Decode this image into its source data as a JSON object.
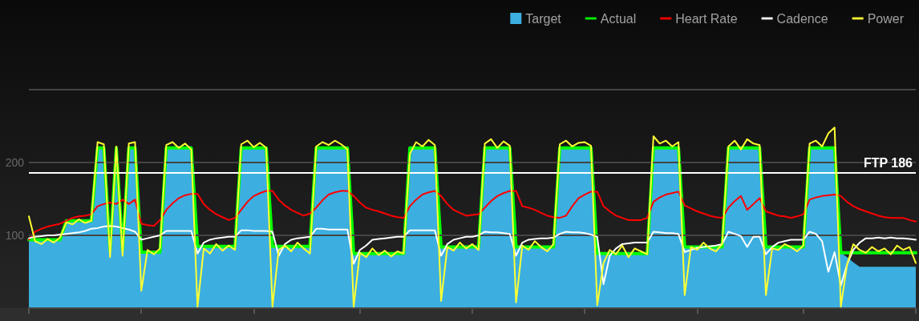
{
  "chart_data": {
    "type": "line",
    "categories": [
      null,
      null,
      null,
      null,
      null,
      null,
      null,
      null,
      null,
      null,
      null,
      null,
      null,
      null,
      null,
      null,
      null,
      null,
      null,
      null,
      null,
      null,
      null,
      null,
      null,
      null,
      null,
      null,
      null,
      null,
      null,
      null,
      null,
      null,
      null,
      null,
      null,
      null,
      null,
      null,
      null,
      null,
      null,
      null,
      null,
      null,
      null,
      null,
      null,
      null,
      null,
      null,
      null,
      null,
      null,
      null,
      null,
      null,
      null,
      null,
      null,
      null,
      null,
      null,
      null,
      null,
      null,
      null,
      null,
      null,
      null,
      null,
      null,
      null,
      null,
      null,
      null,
      null,
      null,
      null,
      null,
      null,
      null,
      null,
      null,
      null,
      null,
      null,
      null,
      null,
      null,
      null,
      null,
      null,
      null,
      null,
      null,
      null,
      null,
      null,
      null,
      null,
      null,
      null,
      null,
      null,
      null,
      null,
      null,
      null,
      null,
      null,
      null,
      null,
      null,
      null,
      null,
      null,
      null,
      null,
      null,
      null,
      null,
      null,
      null,
      null,
      null,
      null,
      null,
      null,
      null,
      null,
      null,
      null,
      null,
      null,
      null,
      null,
      null,
      null,
      null,
      null,
      null
    ],
    "series": [
      {
        "name": "Target",
        "type": "area",
        "color": "#3cafe0",
        "values": [
          94,
          94,
          94,
          94,
          94,
          94,
          120,
          120,
          120,
          120,
          120,
          220,
          220,
          80,
          220,
          80,
          220,
          220,
          77,
          77,
          77,
          77,
          220,
          220,
          220,
          220,
          220,
          85,
          85,
          85,
          85,
          85,
          85,
          85,
          220,
          220,
          220,
          220,
          220,
          85,
          85,
          85,
          85,
          85,
          85,
          85,
          220,
          220,
          220,
          220,
          220,
          220,
          75,
          75,
          75,
          75,
          75,
          75,
          75,
          75,
          75,
          220,
          220,
          220,
          220,
          220,
          84,
          84,
          84,
          84,
          84,
          84,
          84,
          220,
          220,
          220,
          220,
          220,
          84,
          84,
          84,
          84,
          84,
          84,
          84,
          220,
          220,
          220,
          220,
          220,
          220,
          75,
          75,
          75,
          75,
          75,
          75,
          75,
          75,
          75,
          220,
          220,
          220,
          220,
          220,
          84,
          84,
          84,
          84,
          84,
          84,
          84,
          220,
          220,
          220,
          220,
          220,
          220,
          84,
          84,
          84,
          84,
          84,
          84,
          84,
          220,
          220,
          220,
          220,
          220,
          76,
          70,
          63,
          57,
          57,
          57,
          57,
          57,
          57,
          57,
          57,
          57,
          57
        ]
      },
      {
        "name": "Actual",
        "color": "#00ff00",
        "values": [
          94,
          94,
          94,
          94,
          94,
          94,
          120,
          120,
          120,
          120,
          120,
          220,
          220,
          80,
          220,
          80,
          220,
          220,
          77,
          77,
          77,
          77,
          220,
          220,
          220,
          220,
          220,
          85,
          85,
          85,
          85,
          85,
          85,
          85,
          220,
          220,
          220,
          220,
          220,
          85,
          85,
          85,
          85,
          85,
          85,
          85,
          220,
          220,
          220,
          220,
          220,
          220,
          75,
          75,
          75,
          75,
          75,
          75,
          75,
          75,
          75,
          220,
          220,
          220,
          220,
          220,
          84,
          84,
          84,
          84,
          84,
          84,
          84,
          220,
          220,
          220,
          220,
          220,
          84,
          84,
          84,
          84,
          84,
          84,
          84,
          220,
          220,
          220,
          220,
          220,
          220,
          75,
          75,
          75,
          75,
          75,
          75,
          75,
          75,
          75,
          220,
          220,
          220,
          220,
          220,
          84,
          84,
          84,
          84,
          84,
          84,
          84,
          220,
          220,
          220,
          220,
          220,
          220,
          84,
          84,
          84,
          84,
          84,
          84,
          84,
          220,
          220,
          220,
          220,
          220,
          76,
          76,
          76,
          76,
          76,
          76,
          76,
          76,
          76,
          76,
          76,
          76,
          76
        ]
      },
      {
        "name": "Heart Rate",
        "color": "#ff0000",
        "values": [
          94,
          105,
          109,
          112,
          114,
          116,
          120,
          124,
          126,
          127,
          129,
          140,
          143,
          145,
          143,
          149,
          143,
          149,
          116,
          114,
          113,
          121,
          135,
          144,
          151,
          155,
          157,
          157,
          143,
          135,
          129,
          125,
          121,
          124,
          135,
          146,
          154,
          158,
          161,
          161,
          149,
          141,
          135,
          131,
          127,
          130,
          138,
          148,
          156,
          159,
          161,
          161,
          154,
          145,
          138,
          135,
          133,
          130,
          127,
          125,
          124,
          140,
          149,
          156,
          159,
          161,
          154,
          143,
          135,
          131,
          127,
          128,
          129,
          138,
          147,
          154,
          158,
          161,
          161,
          140,
          138,
          135,
          131,
          127,
          125,
          124,
          127,
          140,
          151,
          156,
          160,
          160,
          140,
          133,
          127,
          124,
          121,
          121,
          121,
          124,
          146,
          152,
          156,
          158,
          160,
          141,
          137,
          133,
          130,
          127,
          125,
          124,
          138,
          147,
          154,
          135,
          143,
          151,
          133,
          130,
          127,
          126,
          124,
          126,
          129,
          149,
          152,
          154,
          155,
          156,
          154,
          146,
          140,
          136,
          133,
          130,
          127,
          125,
          124,
          124,
          124,
          121,
          119
        ]
      },
      {
        "name": "Cadence",
        "color": "#ffffff",
        "values": [
          96,
          98,
          99,
          100,
          100,
          101,
          102,
          103,
          104,
          106,
          109,
          110,
          112,
          113,
          112,
          110,
          108,
          105,
          94,
          96,
          98,
          100,
          106,
          106,
          106,
          106,
          106,
          75,
          90,
          94,
          96,
          97,
          98,
          98,
          107,
          107,
          106,
          106,
          106,
          105,
          72,
          88,
          94,
          96,
          97,
          98,
          109,
          109,
          108,
          108,
          108,
          108,
          61,
          80,
          86,
          94,
          95,
          96,
          97,
          98,
          98,
          107,
          107,
          107,
          107,
          107,
          72,
          88,
          94,
          96,
          98,
          98,
          100,
          105,
          104,
          104,
          103,
          102,
          72,
          90,
          94,
          95,
          96,
          96,
          97,
          102,
          105,
          104,
          104,
          103,
          101,
          98,
          33,
          72,
          82,
          88,
          89,
          90,
          90,
          90,
          105,
          104,
          103,
          103,
          102,
          77,
          80,
          83,
          84,
          85,
          86,
          88,
          105,
          102,
          99,
          84,
          98,
          98,
          74,
          84,
          90,
          92,
          94,
          94,
          94,
          105,
          102,
          92,
          50,
          77,
          31,
          60,
          80,
          90,
          96,
          96,
          97,
          96,
          97,
          96,
          96,
          95,
          94
        ]
      },
      {
        "name": "Power",
        "color": "#ffff33",
        "values": [
          126,
          92,
          88,
          95,
          90,
          97,
          118,
          115,
          122,
          117,
          120,
          228,
          225,
          70,
          222,
          72,
          226,
          228,
          24,
          80,
          74,
          82,
          224,
          228,
          220,
          226,
          218,
          2,
          82,
          75,
          88,
          79,
          86,
          80,
          225,
          230,
          221,
          227,
          220,
          2,
          80,
          86,
          78,
          90,
          82,
          75,
          222,
          228,
          224,
          230,
          225,
          218,
          2,
          76,
          70,
          82,
          73,
          79,
          71,
          78,
          75,
          212,
          228,
          222,
          231,
          224,
          10,
          84,
          79,
          90,
          82,
          88,
          80,
          226,
          232,
          220,
          229,
          223,
          8,
          86,
          80,
          92,
          84,
          78,
          88,
          225,
          230,
          222,
          227,
          228,
          223,
          4,
          62,
          80,
          74,
          86,
          70,
          82,
          78,
          74,
          236,
          226,
          230,
          222,
          228,
          18,
          84,
          80,
          90,
          82,
          78,
          88,
          222,
          230,
          218,
          232,
          226,
          224,
          18,
          82,
          80,
          88,
          84,
          78,
          86,
          226,
          230,
          222,
          240,
          248,
          2,
          60,
          88,
          80,
          76,
          84,
          78,
          82,
          74,
          86,
          80,
          84,
          62
        ]
      }
    ],
    "ylim": [
      0,
      300
    ],
    "yticks": [
      {
        "value": 0,
        "label": null
      },
      100,
      200,
      {
        "value": 300,
        "label": null
      }
    ],
    "ref_lines": [
      {
        "axis": "y",
        "value": 186,
        "label": "FTP 186",
        "color": "#ffffff"
      }
    ],
    "grid": "y",
    "legend": "top right",
    "marker": "none",
    "tick_labels": "y"
  }
}
